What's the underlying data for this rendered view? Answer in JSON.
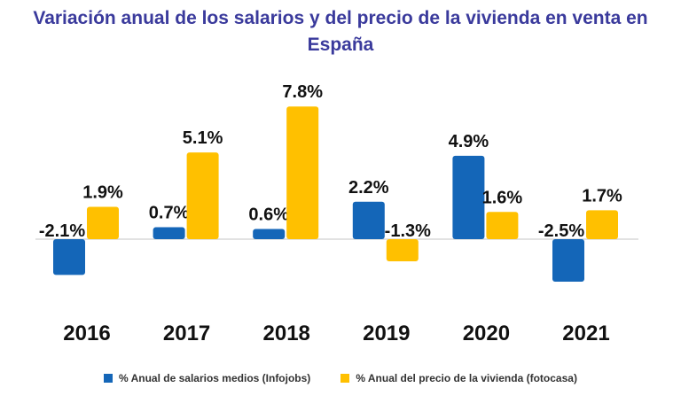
{
  "chart_data": {
    "type": "bar",
    "title": "Variación anual de los salarios y del precio de la vivienda en venta en España",
    "categories": [
      "2016",
      "2017",
      "2018",
      "2019",
      "2020",
      "2021"
    ],
    "series": [
      {
        "name": "% Anual de salarios medios (Infojobs)",
        "color": "#1466b8",
        "values": [
          -2.1,
          0.7,
          0.6,
          2.2,
          4.9,
          -2.5
        ],
        "labels": [
          "-2.1%",
          "0.7%",
          "0.6%",
          "2.2%",
          "4.9%",
          "-2.5%"
        ]
      },
      {
        "name": "% Anual del precio de la vivienda (fotocasa)",
        "color": "#ffc000",
        "values": [
          1.9,
          5.1,
          7.8,
          -1.3,
          1.6,
          1.7
        ],
        "labels": [
          "1.9%",
          "5.1%",
          "7.8%",
          "-1.3%",
          "1.6%",
          "1.7%"
        ]
      }
    ],
    "xlabel": "",
    "ylabel": "",
    "legend_position": "bottom",
    "grid": false
  }
}
